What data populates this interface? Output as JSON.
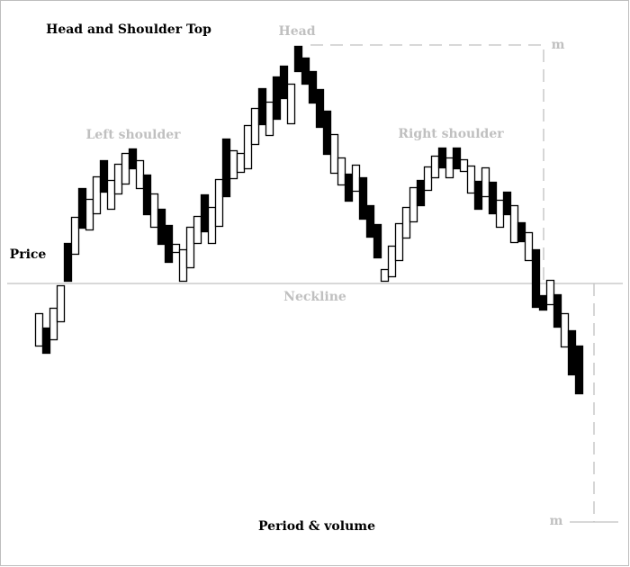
{
  "title": "Head and Shoulder Top",
  "labels": {
    "head": "Head",
    "left_shoulder": "Left shoulder",
    "right_shoulder": "Right shoulder",
    "price": "Price",
    "neckline": "Neckline",
    "period_volume": "Period & volume",
    "measure_top": "m",
    "measure_bottom": "m"
  },
  "colors": {
    "annotation": "#c0c0c0",
    "candle": "#000000",
    "background": "#ffffff"
  },
  "chart_data": {
    "type": "candlestick",
    "note_units": "unlabeled price scale",
    "neckline": 135,
    "head_level": 400,
    "target_level": -130,
    "candles": [
      {
        "top": 102,
        "bottom": 66,
        "filled": false
      },
      {
        "top": 86,
        "bottom": 58,
        "filled": true
      },
      {
        "top": 108,
        "bottom": 73,
        "filled": false
      },
      {
        "top": 133,
        "bottom": 93,
        "filled": false
      },
      {
        "top": 180,
        "bottom": 138,
        "filled": true
      },
      {
        "top": 209,
        "bottom": 168,
        "filled": false
      },
      {
        "top": 241,
        "bottom": 197,
        "filled": true
      },
      {
        "top": 229,
        "bottom": 195,
        "filled": false
      },
      {
        "top": 254,
        "bottom": 213,
        "filled": false
      },
      {
        "top": 272,
        "bottom": 237,
        "filled": true
      },
      {
        "top": 250,
        "bottom": 218,
        "filled": false
      },
      {
        "top": 268,
        "bottom": 235,
        "filled": false
      },
      {
        "top": 280,
        "bottom": 246,
        "filled": false
      },
      {
        "top": 285,
        "bottom": 263,
        "filled": true
      },
      {
        "top": 272,
        "bottom": 241,
        "filled": false
      },
      {
        "top": 256,
        "bottom": 212,
        "filled": true
      },
      {
        "top": 235,
        "bottom": 198,
        "filled": false
      },
      {
        "top": 218,
        "bottom": 179,
        "filled": true
      },
      {
        "top": 200,
        "bottom": 159,
        "filled": true
      },
      {
        "top": 179,
        "bottom": 170,
        "filled": false
      },
      {
        "top": 173,
        "bottom": 138,
        "filled": false
      },
      {
        "top": 198,
        "bottom": 153,
        "filled": false
      },
      {
        "top": 210,
        "bottom": 180,
        "filled": false
      },
      {
        "top": 234,
        "bottom": 193,
        "filled": true
      },
      {
        "top": 220,
        "bottom": 180,
        "filled": false
      },
      {
        "top": 251,
        "bottom": 199,
        "filled": false
      },
      {
        "top": 296,
        "bottom": 232,
        "filled": true
      },
      {
        "top": 283,
        "bottom": 252,
        "filled": false
      },
      {
        "top": 280,
        "bottom": 259,
        "filled": false
      },
      {
        "top": 311,
        "bottom": 263,
        "filled": false
      },
      {
        "top": 330,
        "bottom": 290,
        "filled": false
      },
      {
        "top": 352,
        "bottom": 312,
        "filled": true
      },
      {
        "top": 337,
        "bottom": 300,
        "filled": false
      },
      {
        "top": 365,
        "bottom": 318,
        "filled": true
      },
      {
        "top": 377,
        "bottom": 341,
        "filled": true
      },
      {
        "top": 357,
        "bottom": 313,
        "filled": false
      },
      {
        "top": 399,
        "bottom": 371,
        "filled": true
      },
      {
        "top": 386,
        "bottom": 357,
        "filled": true
      },
      {
        "top": 371,
        "bottom": 336,
        "filled": true
      },
      {
        "top": 351,
        "bottom": 309,
        "filled": true
      },
      {
        "top": 327,
        "bottom": 279,
        "filled": true
      },
      {
        "top": 301,
        "bottom": 258,
        "filled": false
      },
      {
        "top": 275,
        "bottom": 245,
        "filled": false
      },
      {
        "top": 257,
        "bottom": 227,
        "filled": true
      },
      {
        "top": 267,
        "bottom": 238,
        "filled": false
      },
      {
        "top": 253,
        "bottom": 207,
        "filled": true
      },
      {
        "top": 222,
        "bottom": 187,
        "filled": true
      },
      {
        "top": 201,
        "bottom": 164,
        "filled": true
      },
      {
        "top": 151,
        "bottom": 138,
        "filled": false
      },
      {
        "top": 177,
        "bottom": 143,
        "filled": false
      },
      {
        "top": 202,
        "bottom": 161,
        "filled": false
      },
      {
        "top": 220,
        "bottom": 186,
        "filled": false
      },
      {
        "top": 242,
        "bottom": 204,
        "filled": false
      },
      {
        "top": 250,
        "bottom": 222,
        "filled": true
      },
      {
        "top": 265,
        "bottom": 239,
        "filled": false
      },
      {
        "top": 277,
        "bottom": 253,
        "filled": false
      },
      {
        "top": 286,
        "bottom": 264,
        "filled": true
      },
      {
        "top": 275,
        "bottom": 253,
        "filled": false
      },
      {
        "top": 286,
        "bottom": 263,
        "filled": true
      },
      {
        "top": 273,
        "bottom": 260,
        "filled": false
      },
      {
        "top": 266,
        "bottom": 236,
        "filled": false
      },
      {
        "top": 249,
        "bottom": 218,
        "filled": true
      },
      {
        "top": 264,
        "bottom": 232,
        "filled": false
      },
      {
        "top": 248,
        "bottom": 213,
        "filled": true
      },
      {
        "top": 228,
        "bottom": 198,
        "filled": false
      },
      {
        "top": 237,
        "bottom": 212,
        "filled": true
      },
      {
        "top": 222,
        "bottom": 181,
        "filled": false
      },
      {
        "top": 203,
        "bottom": 182,
        "filled": true
      },
      {
        "top": 192,
        "bottom": 161,
        "filled": false
      },
      {
        "top": 173,
        "bottom": 109,
        "filled": true
      },
      {
        "top": 122,
        "bottom": 106,
        "filled": true
      },
      {
        "top": 139,
        "bottom": 112,
        "filled": false
      },
      {
        "top": 123,
        "bottom": 87,
        "filled": true
      },
      {
        "top": 102,
        "bottom": 65,
        "filled": false
      },
      {
        "top": 83,
        "bottom": 34,
        "filled": true
      },
      {
        "top": 66,
        "bottom": 13,
        "filled": true
      }
    ]
  }
}
